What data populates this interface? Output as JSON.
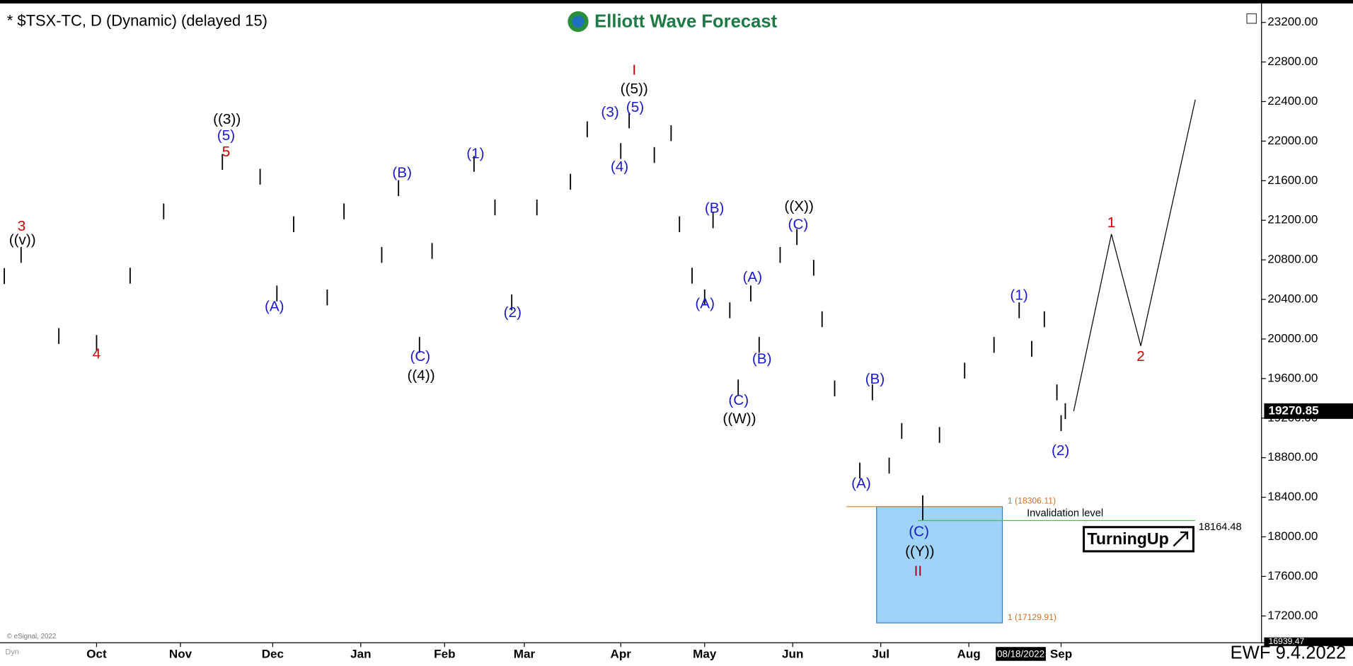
{
  "chart_data": {
    "type": "ohlc",
    "title": "* $TSX-TC, D (Dynamic) (delayed 15)",
    "logo": "Elliott Wave Forecast",
    "x": [
      0,
      4,
      13,
      22,
      30,
      38,
      52,
      61,
      65,
      69,
      77,
      81,
      90,
      94,
      99,
      102,
      112,
      117,
      121,
      127,
      135,
      139,
      147,
      149,
      155,
      159,
      161,
      164,
      167,
      169,
      173,
      175,
      178,
      180,
      185,
      189,
      193,
      195,
      198,
      204,
      207,
      211,
      214,
      219,
      223,
      229,
      236,
      242,
      245,
      248,
      251,
      252,
      253
    ],
    "high": [
      20716,
      20930,
      20110,
      20040,
      20720,
      21370,
      21870,
      21720,
      20540,
      21240,
      20500,
      21370,
      20930,
      21605,
      20020,
      20970,
      21850,
      21410,
      20450,
      21410,
      21670,
      22200,
      21980,
      22290,
      21940,
      22160,
      21240,
      20720,
      20500,
      21280,
      20370,
      19590,
      20540,
      20020,
      20930,
      21110,
      20800,
      20280,
      19580,
      18750,
      19540,
      18800,
      19150,
      18420,
      19110,
      19760,
      20020,
      20370,
      19980,
      20280,
      19540,
      19230,
      19350
    ],
    "low": [
      20556,
      20770,
      19950,
      19880,
      20560,
      21210,
      21710,
      21560,
      20380,
      21080,
      20340,
      21210,
      20770,
      21445,
      19860,
      20810,
      21690,
      21250,
      20290,
      21250,
      21510,
      22040,
      21820,
      22130,
      21780,
      22000,
      21080,
      20560,
      20340,
      21120,
      20210,
      19430,
      20380,
      19860,
      20770,
      20950,
      20640,
      20120,
      19420,
      18590,
      19380,
      18640,
      18990,
      18170,
      18950,
      19600,
      19860,
      20210,
      19820,
      20120,
      19380,
      19070,
      19190
    ],
    "color": "#000000",
    "xlim": [
      0,
      300
    ],
    "xticks": [
      {
        "value": 22,
        "label": "Oct"
      },
      {
        "value": 42,
        "label": "Nov"
      },
      {
        "value": 64,
        "label": "Dec"
      },
      {
        "value": 85,
        "label": "Jan"
      },
      {
        "value": 105,
        "label": "Feb"
      },
      {
        "value": 124,
        "label": "Mar"
      },
      {
        "value": 147,
        "label": "Apr"
      },
      {
        "value": 167,
        "label": "May"
      },
      {
        "value": 188,
        "label": "Jun"
      },
      {
        "value": 209,
        "label": "Jul"
      },
      {
        "value": 230,
        "label": "Aug"
      },
      {
        "value": 252,
        "label": "Sep"
      }
    ],
    "ylim": [
      16900,
      23350
    ],
    "yticks": [
      {
        "value": 17200,
        "label": "17200.00"
      },
      {
        "value": 17600,
        "label": "17600.00"
      },
      {
        "value": 18000,
        "label": "18000.00"
      },
      {
        "value": 18400,
        "label": "18400.00"
      },
      {
        "value": 18800,
        "label": "18800.00"
      },
      {
        "value": 19200,
        "label": "19200.00"
      },
      {
        "value": 19600,
        "label": "19600.00"
      },
      {
        "value": 20000,
        "label": "20000.00"
      },
      {
        "value": 20400,
        "label": "20400.00"
      },
      {
        "value": 20800,
        "label": "20800.00"
      },
      {
        "value": 21200,
        "label": "21200.00"
      },
      {
        "value": 21600,
        "label": "21600.00"
      },
      {
        "value": 22000,
        "label": "22000.00"
      },
      {
        "value": 22400,
        "label": "22400.00"
      },
      {
        "value": 22800,
        "label": "22800.00"
      },
      {
        "value": 23200,
        "label": "23200.00"
      }
    ],
    "projection": {
      "x": [
        255,
        264,
        271,
        284
      ],
      "values": [
        19270,
        21060,
        19930,
        22420
      ]
    },
    "last_price": {
      "value": 19270.85,
      "label": "19270.85"
    },
    "axis_min": {
      "value": 16939.47,
      "label": "16939.47"
    },
    "box_x": [
      208,
      238
    ],
    "box_top": {
      "value": 18306.11,
      "label": "1 (18306.11)"
    },
    "box_bottom": {
      "value": 17129.91,
      "label": "1 (17129.91)"
    },
    "invalidation": {
      "value": 18164.48,
      "label": "18164.48",
      "text": "Invalidation level"
    },
    "annotations": [
      {
        "text": "3",
        "color": "#cc0000"
      },
      {
        "text": "((v))",
        "color": "#000000"
      },
      {
        "text": "4",
        "color": "#cc0000"
      },
      {
        "text": "((3))",
        "color": "#000000"
      },
      {
        "text": "(5)",
        "color": "#1a1acc"
      },
      {
        "text": "5",
        "color": "#cc0000"
      },
      {
        "text": "(A)",
        "color": "#1a1acc"
      },
      {
        "text": "(B)",
        "color": "#1a1acc"
      },
      {
        "text": "(C)",
        "color": "#1a1acc"
      },
      {
        "text": "((4))",
        "color": "#000000"
      },
      {
        "text": "(1)",
        "color": "#1a1acc"
      },
      {
        "text": "(2)",
        "color": "#1a1acc"
      },
      {
        "text": "I",
        "color": "#cc0000"
      },
      {
        "text": "((5))",
        "color": "#000000"
      },
      {
        "text": "(3)",
        "color": "#1a1acc"
      },
      {
        "text": "(5)",
        "color": "#1a1acc"
      },
      {
        "text": "(4)",
        "color": "#1a1acc"
      },
      {
        "text": "(B)",
        "color": "#1a1acc"
      },
      {
        "text": "(A)",
        "color": "#1a1acc"
      },
      {
        "text": "(A)",
        "color": "#1a1acc"
      },
      {
        "text": "(B)",
        "color": "#1a1acc"
      },
      {
        "text": "(C)",
        "color": "#1a1acc"
      },
      {
        "text": "((W))",
        "color": "#000000"
      },
      {
        "text": "((X))",
        "color": "#000000"
      },
      {
        "text": "(C)",
        "color": "#1a1acc"
      },
      {
        "text": "(B)",
        "color": "#1a1acc"
      },
      {
        "text": "(A)",
        "color": "#1a1acc"
      },
      {
        "text": "(C)",
        "color": "#1a1acc"
      },
      {
        "text": "((Y))",
        "color": "#000000"
      },
      {
        "text": "II",
        "color": "#a0001a"
      },
      {
        "text": "(1)",
        "color": "#1a1acc"
      },
      {
        "text": "(2)",
        "color": "#1a1acc"
      },
      {
        "text": "1",
        "color": "#cc0000"
      },
      {
        "text": "2",
        "color": "#cc0000"
      }
    ],
    "badge": "TurningUp",
    "date_box": "08/18/2022",
    "copyright": "© eSignal, 2022",
    "dyn": "Dyn",
    "footer": "EWF 9.4.2022"
  }
}
